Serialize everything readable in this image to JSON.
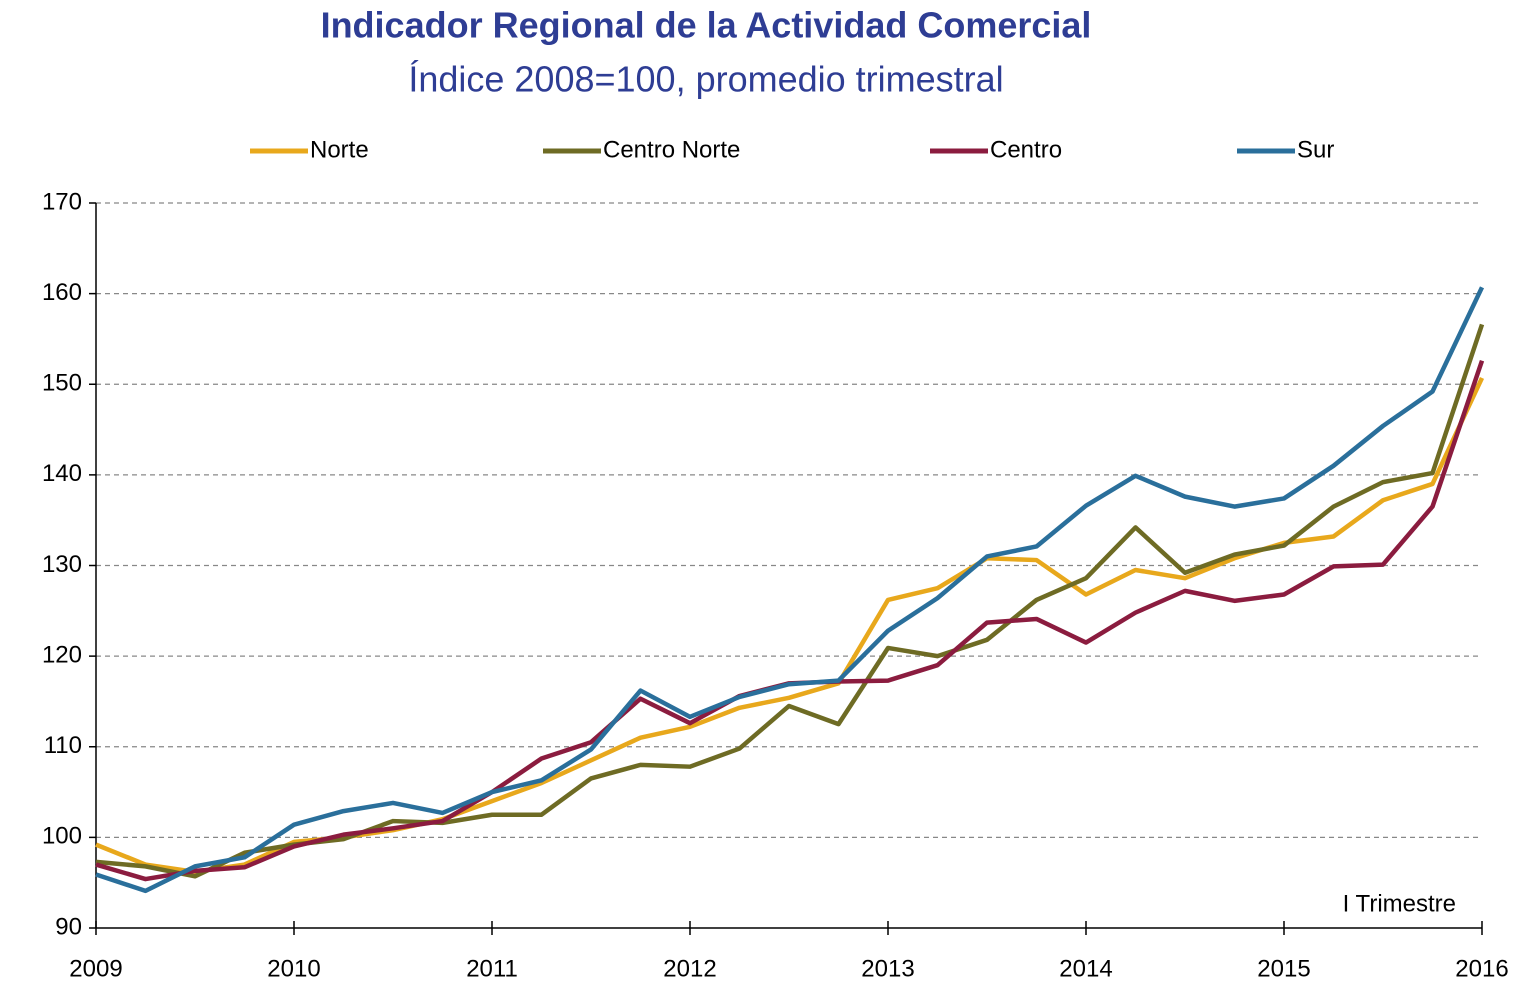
{
  "chart_data": {
    "type": "line",
    "title": "Indicador Regional de la Actividad Comercial",
    "subtitle": "Índice 2008=100, promedio trimestral",
    "annotation": "I Trimestre",
    "x": [
      2009,
      2009.25,
      2009.5,
      2009.75,
      2010,
      2010.25,
      2010.5,
      2010.75,
      2011,
      2011.25,
      2011.5,
      2011.75,
      2012,
      2012.25,
      2012.5,
      2012.75,
      2013,
      2013.25,
      2013.5,
      2013.75,
      2014,
      2014.25,
      2014.5,
      2014.75,
      2015,
      2015.25,
      2015.5,
      2015.75,
      2016
    ],
    "series": [
      {
        "name": "Norte",
        "color": "#e8a81c",
        "values": [
          99.2,
          97,
          96.2,
          97,
          99.5,
          100,
          100.8,
          102,
          104,
          106,
          108.5,
          111,
          112.2,
          114.3,
          115.4,
          117,
          126.2,
          127.5,
          130.8,
          130.6,
          126.8,
          129.5,
          128.6,
          130.8,
          132.5,
          133.2,
          137.2,
          139,
          150.7
        ]
      },
      {
        "name": "Centro Norte",
        "color": "#6e6b24",
        "values": [
          97.3,
          96.8,
          95.7,
          98.3,
          99.2,
          99.8,
          101.8,
          101.6,
          102.5,
          102.5,
          106.5,
          108,
          107.8,
          109.8,
          114.5,
          112.5,
          120.9,
          120,
          121.8,
          126.2,
          128.6,
          134.2,
          129.2,
          131.2,
          132.2,
          136.5,
          139.2,
          140.2,
          156.6
        ]
      },
      {
        "name": "Centro",
        "color": "#8b1c3f",
        "values": [
          97,
          95.4,
          96.3,
          96.7,
          99,
          100.3,
          101,
          101.8,
          105,
          108.7,
          110.5,
          115.3,
          112.6,
          115.6,
          117,
          117.2,
          117.3,
          119,
          123.7,
          124.1,
          121.5,
          124.8,
          127.2,
          126.1,
          126.8,
          129.9,
          130.1,
          136.5,
          152.6
        ]
      },
      {
        "name": "Sur",
        "color": "#2a6f9b",
        "values": [
          95.9,
          94.1,
          96.8,
          97.8,
          101.4,
          102.9,
          103.8,
          102.7,
          105,
          106.3,
          109.7,
          116.2,
          113.3,
          115.5,
          116.9,
          117.3,
          122.8,
          126.4,
          131,
          132.1,
          136.6,
          139.9,
          137.6,
          136.5,
          137.4,
          141,
          145.4,
          149.2,
          160.7
        ]
      }
    ],
    "xlim": [
      2009,
      2016
    ],
    "xticks": [
      2009,
      2010,
      2011,
      2012,
      2013,
      2014,
      2015,
      2016
    ],
    "ylim": [
      90,
      170
    ],
    "yticks": [
      90,
      100,
      110,
      120,
      130,
      140,
      150,
      160,
      170
    ],
    "grid": true,
    "legend": "top"
  }
}
